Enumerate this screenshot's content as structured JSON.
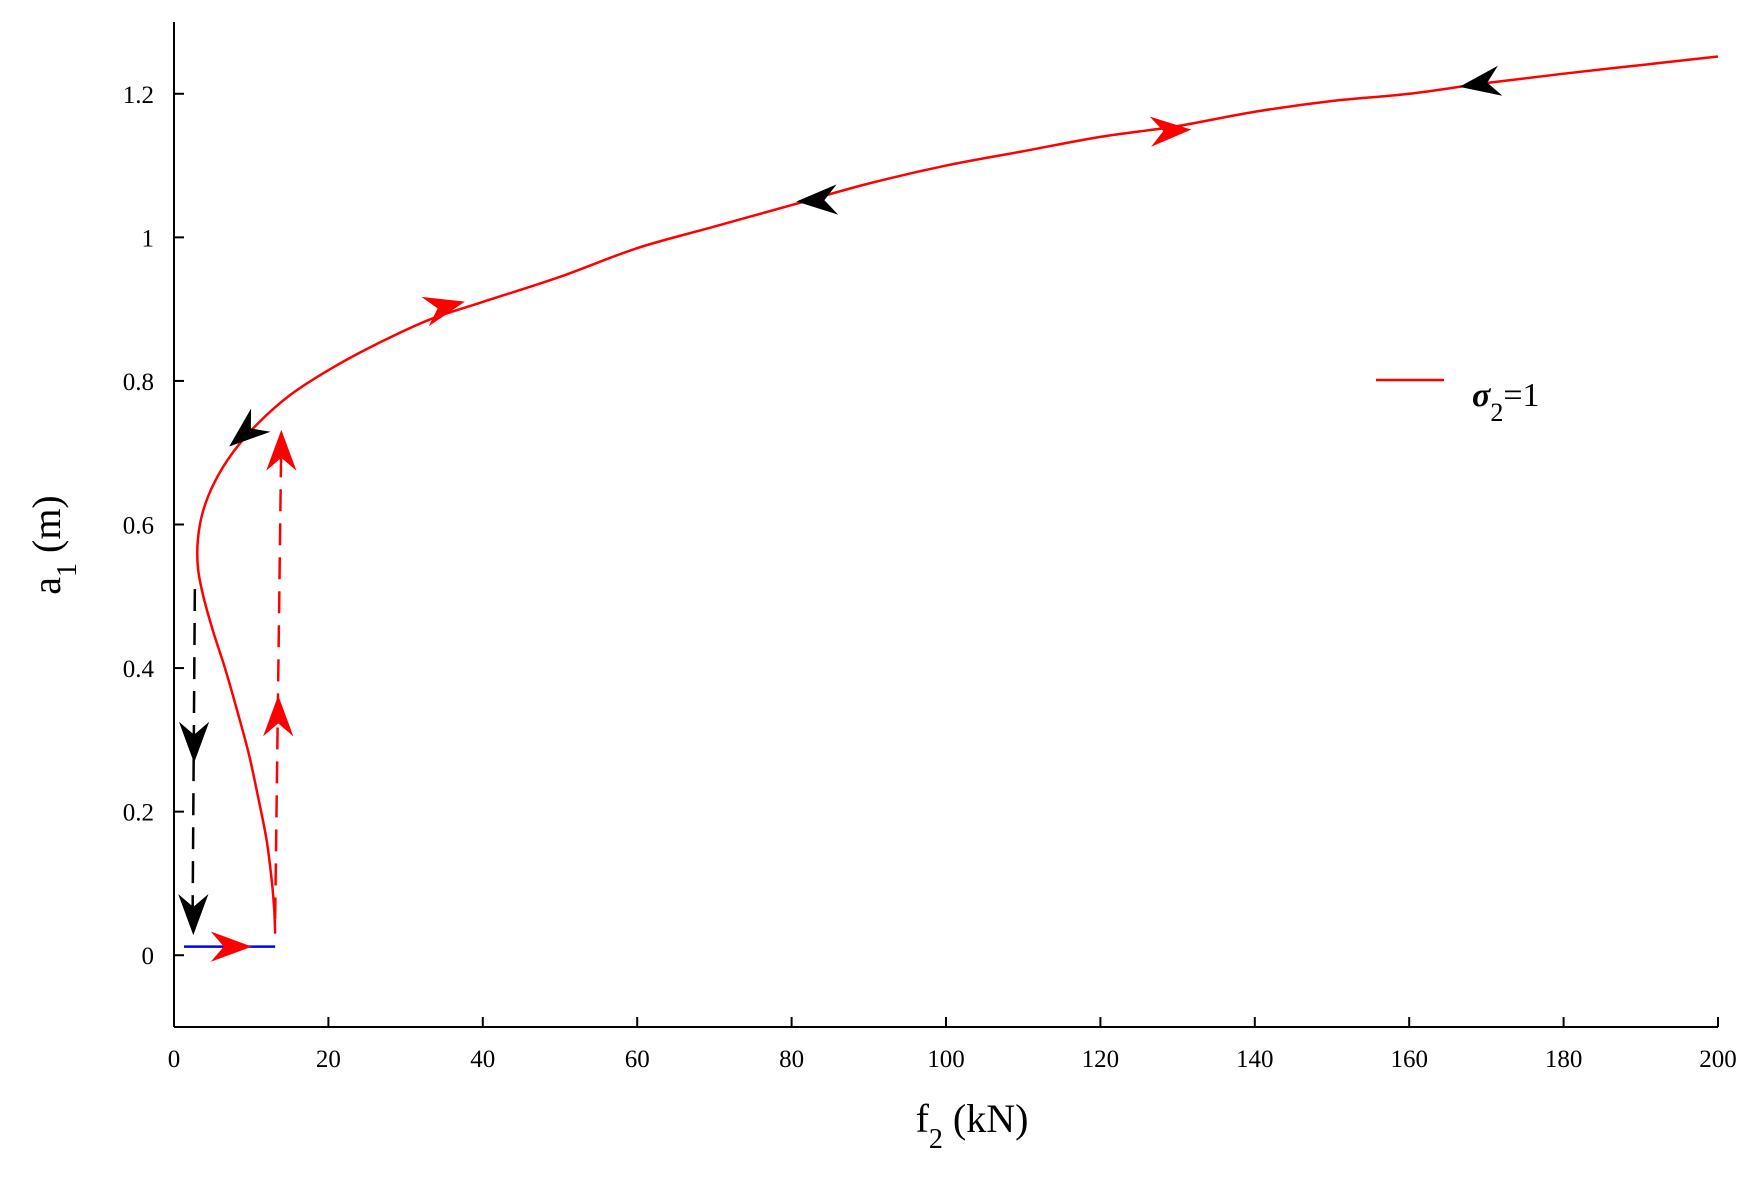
{
  "chart_data": {
    "type": "line",
    "xlabel": {
      "main": "f",
      "sub": "2",
      "rest": " (kN)"
    },
    "ylabel": {
      "main": "a",
      "sub": "1",
      "rest": " (m)"
    },
    "xlim": [
      0,
      200
    ],
    "ylim": [
      -0.1,
      1.3
    ],
    "xticks": [
      0,
      20,
      40,
      60,
      80,
      100,
      120,
      140,
      160,
      180,
      200
    ],
    "xtick_labels": [
      "0",
      "20",
      "40",
      "60",
      "80",
      "100",
      "120",
      "140",
      "160",
      "180",
      "200"
    ],
    "yticks": [
      0,
      0.2,
      0.4,
      0.6,
      0.8,
      1.0,
      1.2
    ],
    "ytick_labels": [
      "0",
      "0.2",
      "0.4",
      "0.6",
      "0.8",
      "1",
      "1.2"
    ],
    "grid": false,
    "legend": {
      "placement": "right",
      "entries": [
        {
          "symbol": "σ",
          "sub": "2",
          "rest": "=1",
          "color": "#ff0000"
        }
      ]
    },
    "series": [
      {
        "name": "σ2=1",
        "color": "#ff0000",
        "style": "solid",
        "points": [
          [
            13.1,
            0.03
          ],
          [
            13.0,
            0.06
          ],
          [
            12.7,
            0.1
          ],
          [
            12.0,
            0.16
          ],
          [
            10.9,
            0.22
          ],
          [
            9.7,
            0.28
          ],
          [
            8.2,
            0.34
          ],
          [
            6.6,
            0.4
          ],
          [
            5.1,
            0.45
          ],
          [
            3.8,
            0.5
          ],
          [
            3.1,
            0.54
          ],
          [
            3.1,
            0.58
          ],
          [
            3.8,
            0.62
          ],
          [
            5.3,
            0.66
          ],
          [
            7.6,
            0.7
          ],
          [
            10.8,
            0.74
          ],
          [
            15.0,
            0.78
          ],
          [
            20.0,
            0.815
          ],
          [
            26.0,
            0.85
          ],
          [
            33.0,
            0.885
          ],
          [
            40.0,
            0.91
          ],
          [
            50.0,
            0.945
          ],
          [
            60.0,
            0.985
          ],
          [
            70.0,
            1.015
          ],
          [
            80.0,
            1.045
          ],
          [
            90.0,
            1.075
          ],
          [
            100.0,
            1.1
          ],
          [
            110.0,
            1.12
          ],
          [
            120.0,
            1.14
          ],
          [
            130.0,
            1.155
          ],
          [
            140.0,
            1.175
          ],
          [
            150.0,
            1.19
          ],
          [
            160.0,
            1.2
          ],
          [
            170.0,
            1.215
          ],
          [
            180.0,
            1.228
          ],
          [
            190.0,
            1.24
          ],
          [
            200.0,
            1.252
          ]
        ]
      },
      {
        "color": "#0000ff",
        "style": "solid",
        "points": [
          [
            1.3,
            0.012
          ],
          [
            13.1,
            0.012
          ]
        ]
      },
      {
        "color": "#000000",
        "style": "dashed",
        "points": [
          [
            2.7,
            0.51
          ],
          [
            2.4,
            0.04
          ]
        ]
      },
      {
        "color": "#ff0000",
        "style": "dashed",
        "points": [
          [
            13.1,
            0.05
          ],
          [
            13.9,
            0.72
          ]
        ]
      }
    ],
    "arrows": [
      {
        "x": 166.7,
        "y": 1.21,
        "dx": -1,
        "dy": -0.15,
        "color": "#000000"
      },
      {
        "x": 131.6,
        "y": 1.15,
        "dx": 1,
        "dy": 0.05,
        "color": "#ff0000"
      },
      {
        "x": 80.8,
        "y": 1.05,
        "dx": -1,
        "dy": -0.05,
        "color": "#000000"
      },
      {
        "x": 37.5,
        "y": 0.91,
        "dx": 1,
        "dy": 0.25,
        "color": "#ff0000"
      },
      {
        "x": 7.3,
        "y": 0.71,
        "dx": -0.6,
        "dy": -0.5,
        "color": "#000000"
      },
      {
        "x": 13.9,
        "y": 0.73,
        "dx": 0,
        "dy": 1,
        "color": "#ff0000"
      },
      {
        "x": 13.5,
        "y": 0.36,
        "dx": 0,
        "dy": 1,
        "color": "#ff0000"
      },
      {
        "x": 2.6,
        "y": 0.27,
        "dx": 0,
        "dy": -1,
        "color": "#000000"
      },
      {
        "x": 2.5,
        "y": 0.03,
        "dx": 0,
        "dy": -1,
        "color": "#000000"
      },
      {
        "x": 9.9,
        "y": 0.012,
        "dx": 1,
        "dy": 0,
        "color": "#ff0000"
      }
    ]
  }
}
